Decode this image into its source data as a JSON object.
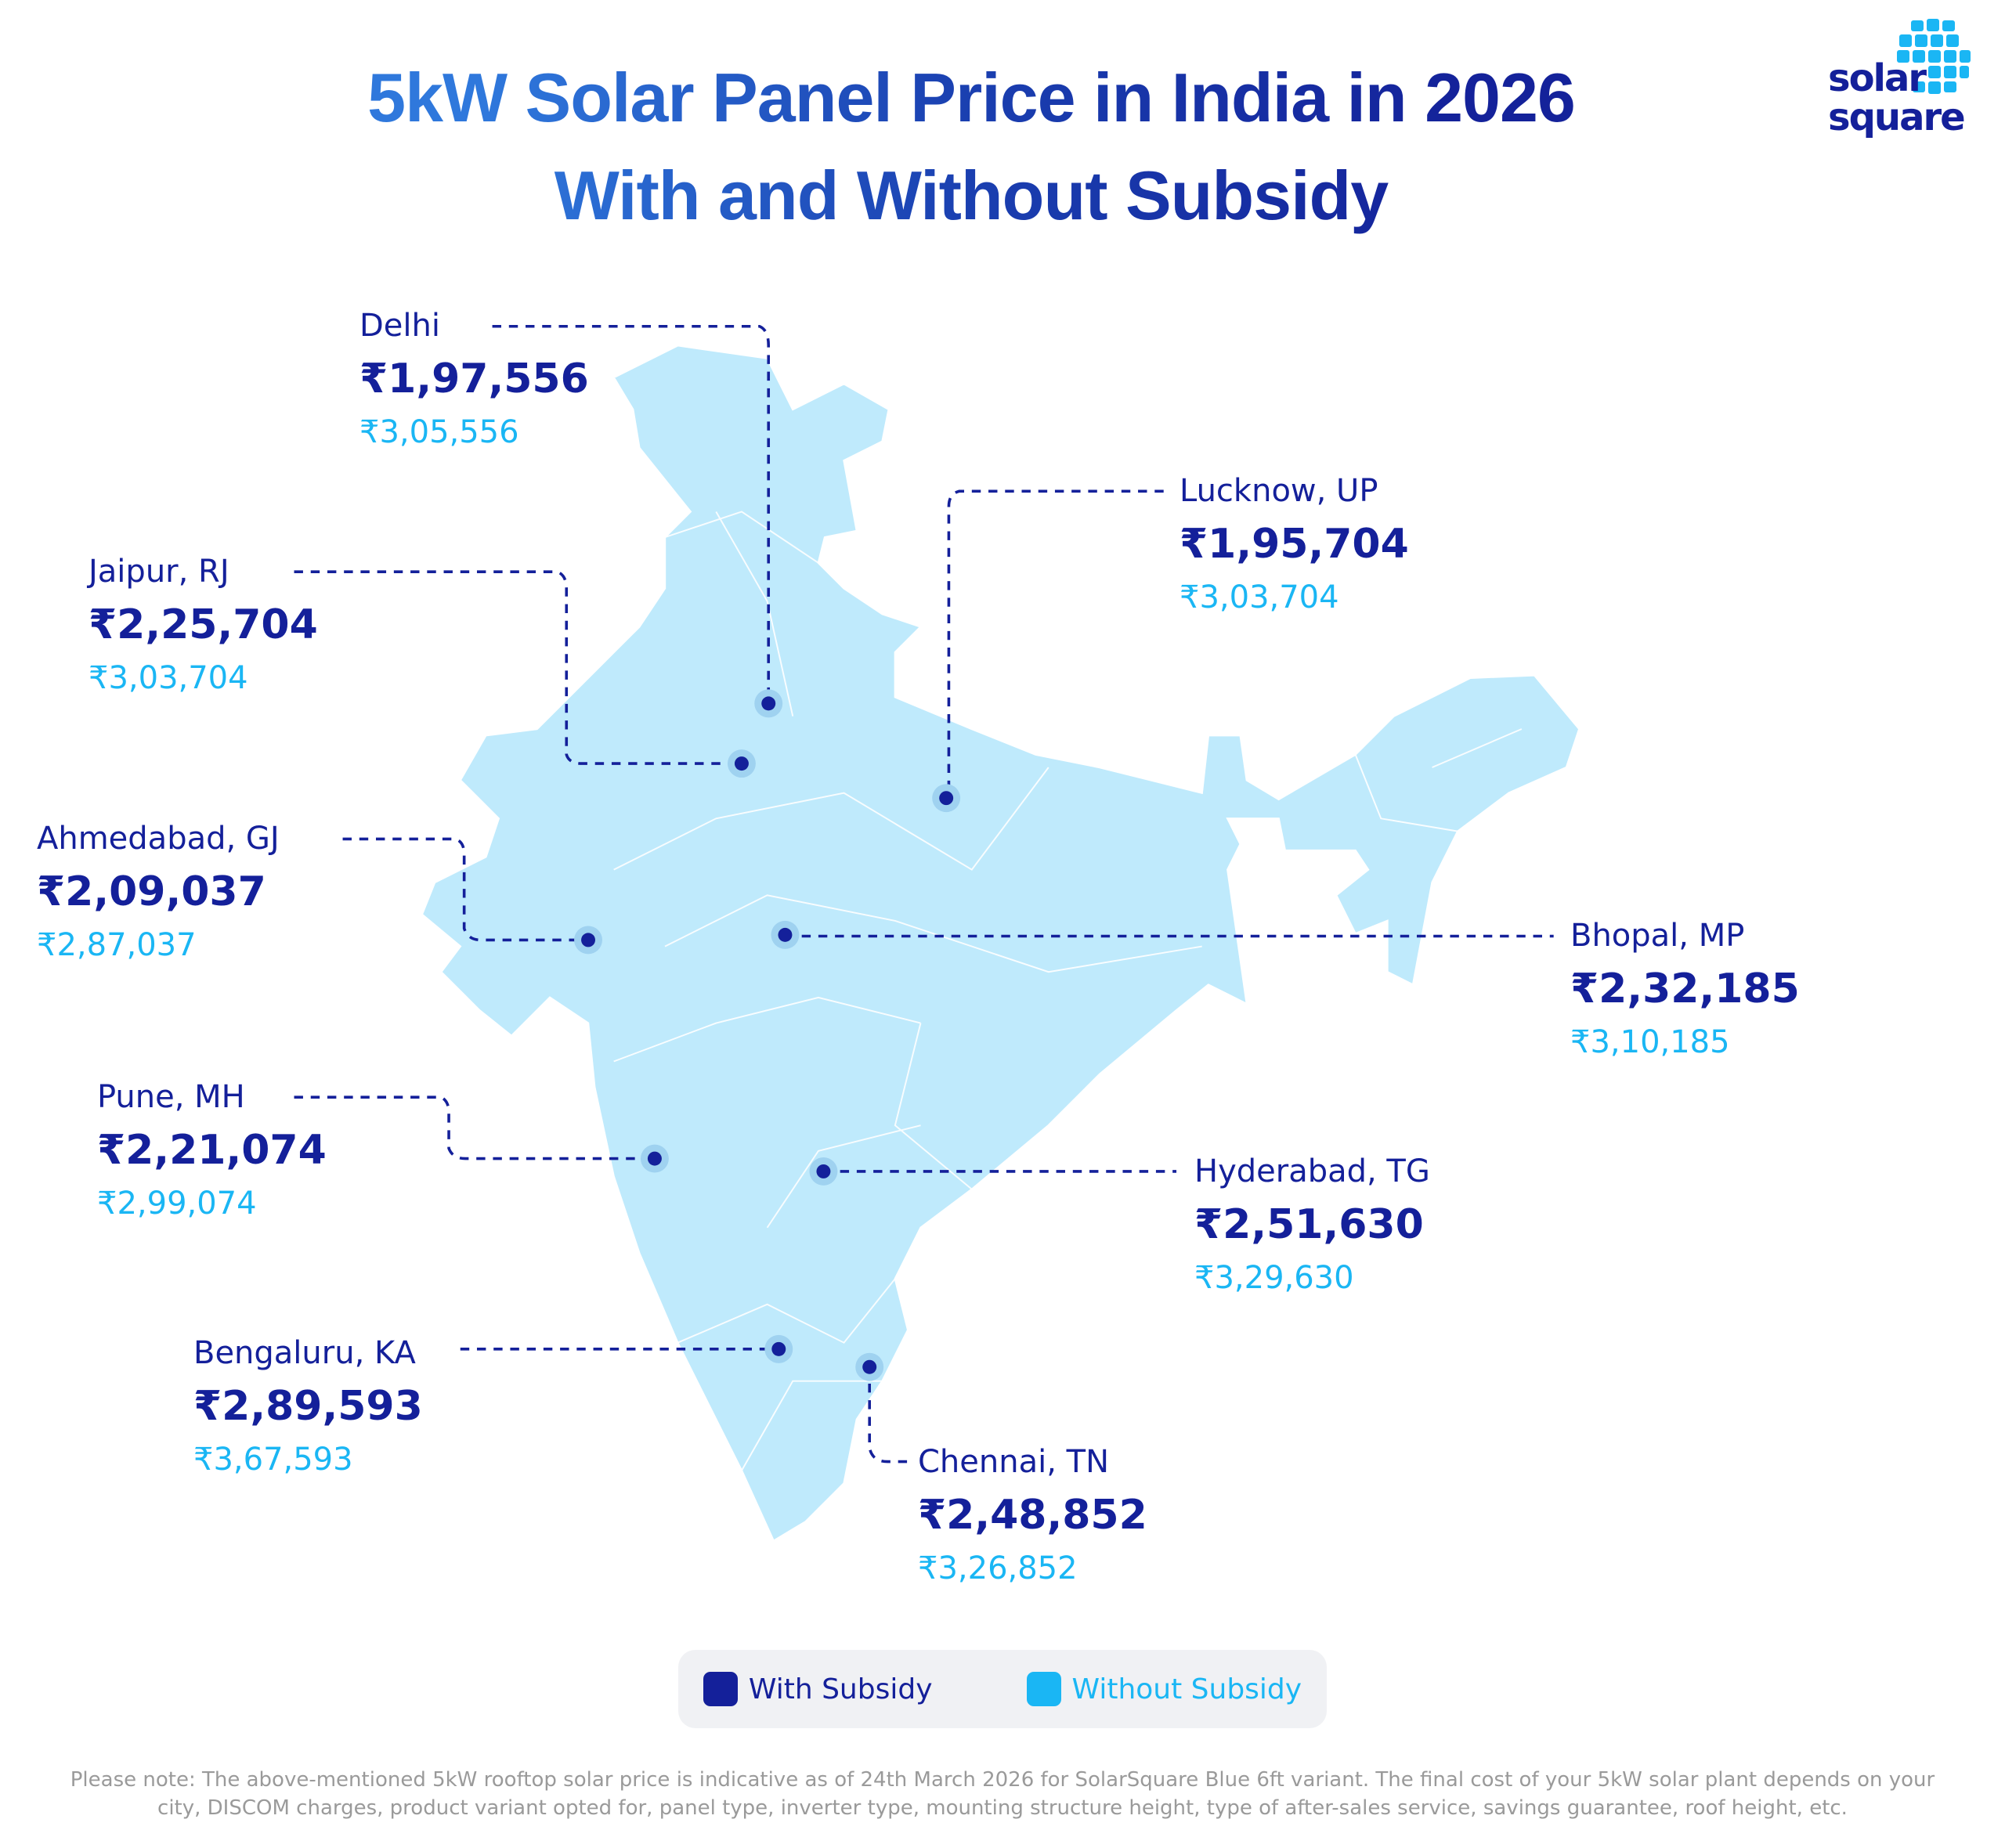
{
  "title_line1": "5kW Solar Panel Price in India in 2026",
  "title_line2": "With and Without Subsidy",
  "logo": {
    "line1": "solar",
    "line2": "square"
  },
  "colors": {
    "with_subsidy": "#14209a",
    "without_subsidy": "#1ab6f4",
    "map_fill": "#bfeafc"
  },
  "chart_data": {
    "type": "map",
    "title": "5kW Solar Panel Price in India in 2026 With and Without Subsidy",
    "legend": [
      "With Subsidy",
      "Without Subsidy"
    ],
    "cities": [
      {
        "name": "Delhi",
        "with": "₹1,97,556",
        "without": "₹3,05,556"
      },
      {
        "name": "Jaipur, RJ",
        "with": "₹2,25,704",
        "without": "₹3,03,704"
      },
      {
        "name": "Ahmedabad, GJ",
        "with": "₹2,09,037",
        "without": "₹2,87,037"
      },
      {
        "name": "Pune, MH",
        "with": "₹2,21,074",
        "without": "₹2,99,074"
      },
      {
        "name": "Bengaluru, KA",
        "with": "₹2,89,593",
        "without": "₹3,67,593"
      },
      {
        "name": "Lucknow, UP",
        "with": "₹1,95,704",
        "without": "₹3,03,704"
      },
      {
        "name": "Bhopal, MP",
        "with": "₹2,32,185",
        "without": "₹3,10,185"
      },
      {
        "name": "Hyderabad, TG",
        "with": "₹2,51,630",
        "without": "₹3,29,630"
      },
      {
        "name": "Chennai, TN",
        "with": "₹2,48,852",
        "without": "₹3,26,852"
      }
    ]
  },
  "legend": {
    "with_label": "With Subsidy",
    "without_label": "Without Subsidy"
  },
  "note": "Please note: The above-mentioned 5kW rooftop solar price is indicative as of 24th March 2026 for SolarSquare Blue 6ft variant. The final cost of your 5kW solar plant depends on your city, DISCOM charges, product variant opted for, panel type, inverter type, mounting structure height, type of after-sales service, savings guarantee, roof height, etc."
}
